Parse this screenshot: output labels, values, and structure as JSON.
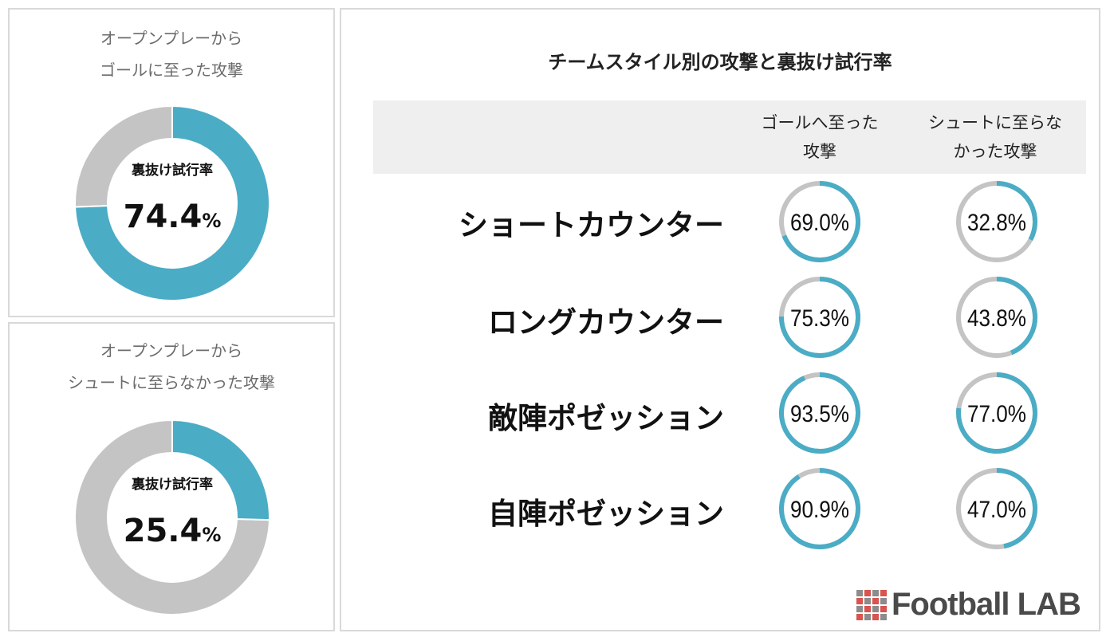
{
  "colors": {
    "accent": "#4bacc6",
    "track": "#c4c4c4",
    "logo_text": "#4a4a4a",
    "logo_red": "#d9534f",
    "logo_grey": "#8c8c8c"
  },
  "donut_a": {
    "title_line1": "オープンプレーから",
    "title_line2": "ゴールに至った攻撃",
    "center_label": "裏抜け試行率",
    "value": "74.4",
    "unit": "%"
  },
  "donut_b": {
    "title_line1": "オープンプレーから",
    "title_line2": "シュートに至らなかった攻撃",
    "center_label": "裏抜け試行率",
    "value": "25.4",
    "unit": "%"
  },
  "main": {
    "title": "チームスタイル別の攻撃と裏抜け試行率",
    "col1_line1": "ゴールへ至った",
    "col1_line2": "攻撃",
    "col2_line1": "シュートに至らな",
    "col2_line2": "かった攻撃"
  },
  "logo": {
    "text": "Football LAB",
    "icon": "grid-logo-icon"
  },
  "chart_data": [
    {
      "type": "pie",
      "title": "オープンプレーから ゴールに至った攻撃",
      "center_label": "裏抜け試行率",
      "values": [
        74.4,
        25.6
      ],
      "value_label": "74.4%"
    },
    {
      "type": "pie",
      "title": "オープンプレーから シュートに至らなかった攻撃",
      "center_label": "裏抜け試行率",
      "values": [
        25.4,
        74.6
      ],
      "value_label": "25.4%"
    },
    {
      "type": "table",
      "title": "チームスタイル別の攻撃と裏抜け試行率",
      "columns": [
        "ゴールへ至った攻撃",
        "シュートに至らなかった攻撃"
      ],
      "rows": [
        {
          "label": "ショートカウンター",
          "values": [
            69.0,
            32.8
          ],
          "labels": [
            "69.0%",
            "32.8%"
          ]
        },
        {
          "label": "ロングカウンター",
          "values": [
            75.3,
            43.8
          ],
          "labels": [
            "75.3%",
            "43.8%"
          ]
        },
        {
          "label": "敵陣ポゼッション",
          "values": [
            93.5,
            77.0
          ],
          "labels": [
            "93.5%",
            "77.0%"
          ]
        },
        {
          "label": "自陣ポゼッション",
          "values": [
            90.9,
            47.0
          ],
          "labels": [
            "90.9%",
            "47.0%"
          ]
        }
      ]
    }
  ]
}
